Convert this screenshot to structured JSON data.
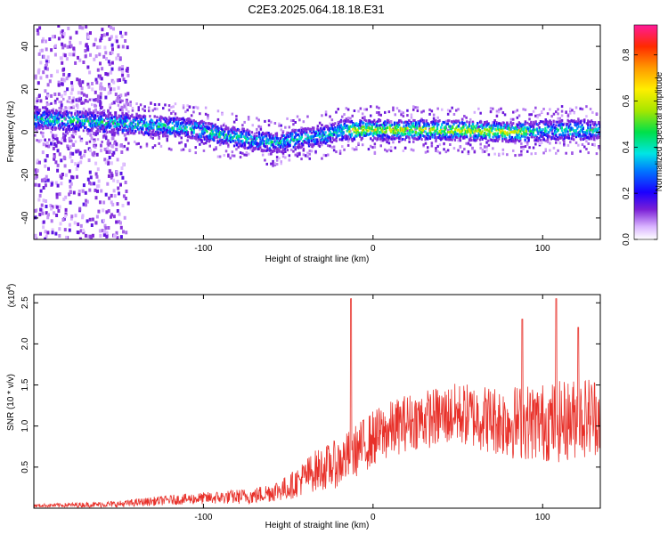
{
  "title": "C2E3.2025.064.18.18.E31",
  "chart_data": [
    {
      "type": "heatmap",
      "xlabel": "Height of straight line (km)",
      "ylabel": "Frequency (Hz)",
      "xlim": [
        -200,
        134
      ],
      "ylim": [
        -50,
        50
      ],
      "xticks": [
        -100,
        0,
        100
      ],
      "yticks": [
        -40,
        -20,
        0,
        20,
        40
      ],
      "ridge": {
        "x": [
          -200,
          -170,
          -150,
          -130,
          -110,
          -90,
          -70,
          -55,
          -45,
          -30,
          -20,
          0,
          40,
          80,
          110,
          134
        ],
        "freq": [
          6,
          5,
          4,
          3,
          2,
          -1,
          -4,
          -5,
          -3,
          -2,
          1,
          1,
          1,
          0,
          1,
          1
        ]
      },
      "colorbar": {
        "label": "Normalized spectral amplitude",
        "min": 0.0,
        "max": 0.93,
        "ticks": [
          0.0,
          0.2,
          0.4,
          0.6,
          0.8
        ],
        "tick_labels": [
          "0.0",
          "0.2",
          "0.4",
          "0.6",
          "0.8"
        ]
      }
    },
    {
      "type": "line",
      "xlabel": "Height of straight line (km)",
      "ylabel": "SNR (10 * v/v)",
      "multiplier_label": "(x10",
      "multiplier_exp": "4",
      "multiplier_close": ")",
      "xlim": [
        -200,
        134
      ],
      "ylim": [
        0,
        2.6
      ],
      "xticks": [
        -100,
        0,
        100
      ],
      "yticks": [
        0.5,
        1.0,
        1.5,
        2.0,
        2.5
      ],
      "ytick_labels": [
        "0.5",
        "1.0",
        "1.5",
        "2.0",
        "2.5"
      ],
      "color": "#e8312a",
      "trend": {
        "x": [
          -200,
          -150,
          -120,
          -90,
          -70,
          -50,
          -35,
          -20,
          -10,
          0,
          20,
          50,
          80,
          110,
          134
        ],
        "mean": [
          0.03,
          0.05,
          0.1,
          0.13,
          0.15,
          0.25,
          0.45,
          0.55,
          0.7,
          0.85,
          1.05,
          1.15,
          1.05,
          1.05,
          1.15
        ],
        "spread": [
          0.02,
          0.04,
          0.06,
          0.08,
          0.1,
          0.15,
          0.25,
          0.3,
          0.32,
          0.35,
          0.35,
          0.38,
          0.45,
          0.5,
          0.5
        ]
      },
      "spikes": [
        {
          "x": -13,
          "y": 2.55
        },
        {
          "x": 108,
          "y": 2.55
        },
        {
          "x": 88,
          "y": 2.3
        },
        {
          "x": 121,
          "y": 2.2
        }
      ]
    }
  ]
}
